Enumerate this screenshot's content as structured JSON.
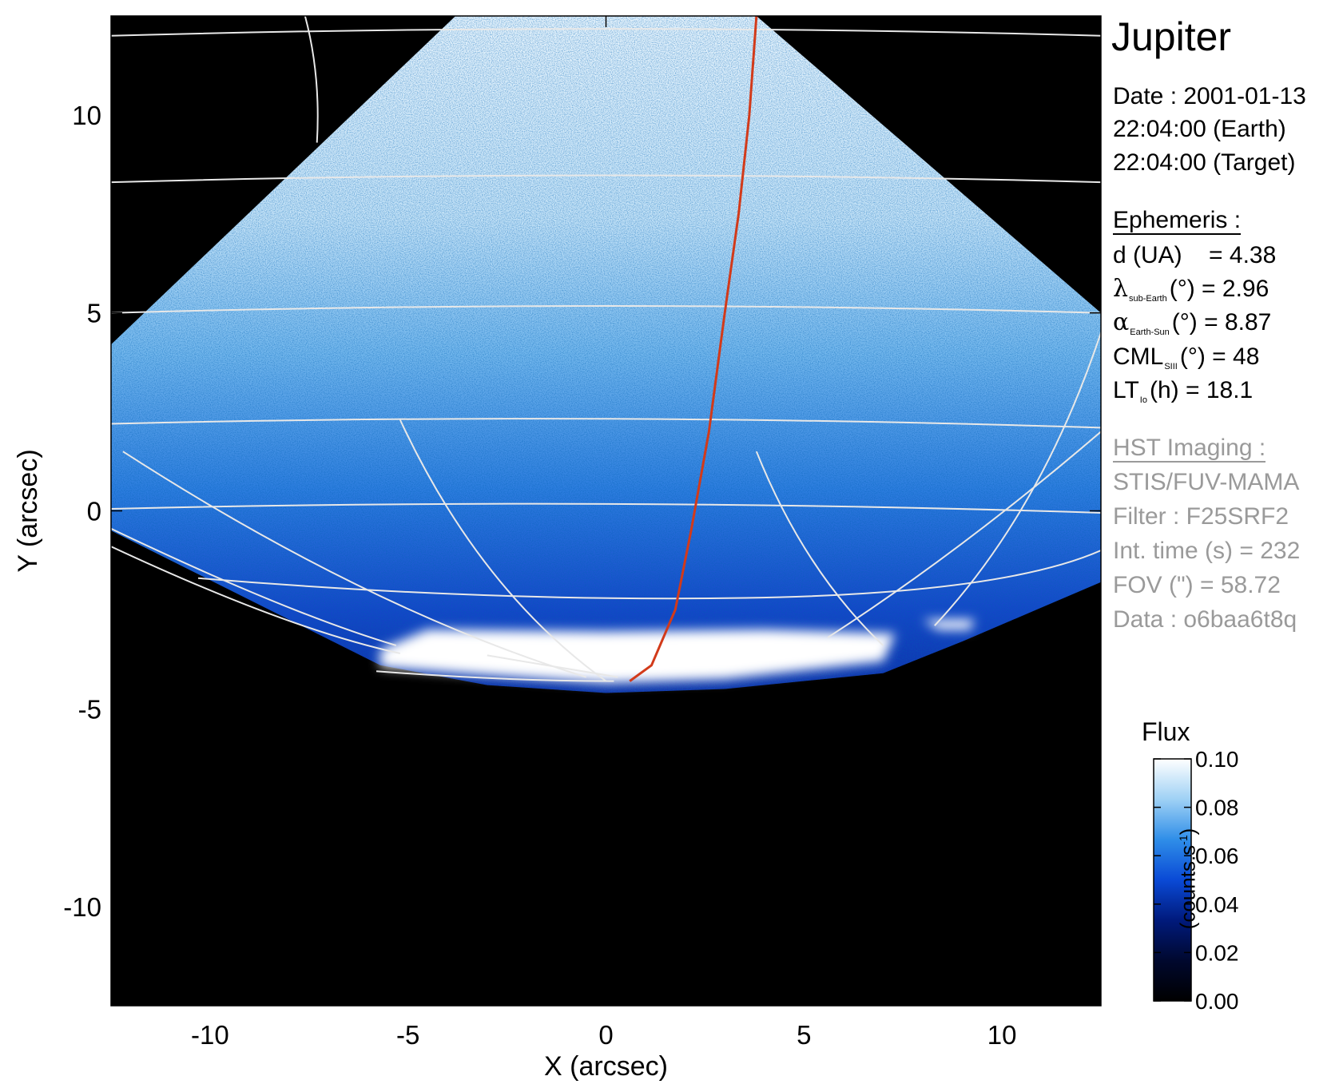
{
  "chart_data": {
    "type": "heatmap",
    "title": "",
    "xlabel": "X (arcsec)",
    "ylabel": "Y (arcsec)",
    "xlim": [
      -12.5,
      12.5
    ],
    "ylim": [
      -12.5,
      12.5
    ],
    "xticks": [
      -10,
      -5,
      0,
      5,
      10
    ],
    "yticks": [
      10,
      5,
      0,
      -5,
      -10
    ],
    "xtick_labels": [
      "-10",
      "-5",
      "0",
      "5",
      "10"
    ],
    "ytick_labels": [
      "10",
      "5",
      "0",
      "-5",
      "-10"
    ],
    "background": "#000000",
    "colormap": {
      "title": "Flux",
      "unit_label": "(counts.s",
      "unit_exponent": "-1",
      "unit_close": ")",
      "range": [
        0.0,
        0.1
      ],
      "ticks": [
        0.1,
        0.08,
        0.06,
        0.04,
        0.02,
        0.0
      ],
      "tick_labels": [
        "0.10",
        "0.08",
        "0.06",
        "0.04",
        "0.02",
        "0.00"
      ],
      "colors": [
        "#000000",
        "#00082e",
        "#001a7c",
        "#0a4ad6",
        "#2f8ee8",
        "#9fd1f5",
        "#ffffff"
      ]
    },
    "image_edge_polygon": [
      [
        -12.5,
        4.2
      ],
      [
        -3.8,
        12.5
      ],
      [
        3.8,
        12.5
      ],
      [
        12.5,
        5.0
      ],
      [
        12.5,
        -1.8
      ],
      [
        9.0,
        -3.3
      ],
      [
        7.0,
        -4.1
      ],
      [
        3.0,
        -4.5
      ],
      [
        0.0,
        -4.6
      ],
      [
        -3.0,
        -4.4
      ],
      [
        -5.7,
        -3.9
      ],
      [
        -12.5,
        -0.5
      ]
    ],
    "footprint_line": {
      "color": "#d23a1a",
      "points": [
        [
          3.8,
          12.5
        ],
        [
          3.62,
          10.0
        ],
        [
          3.35,
          7.5
        ],
        [
          3.0,
          5.0
        ],
        [
          2.6,
          2.0
        ],
        [
          2.15,
          -0.5
        ],
        [
          1.75,
          -2.5
        ],
        [
          1.15,
          -3.9
        ],
        [
          0.6,
          -4.3
        ]
      ]
    },
    "grid_color": "#e8e8e8"
  },
  "panel": {
    "target": "Jupiter",
    "date_line": "Date : 2001-01-13",
    "earth_time": "22:04:00 (Earth)",
    "target_time": "22:04:00 (Target)",
    "ephemeris_header": "Ephemeris :",
    "d_label": "d (UA)",
    "d_value": "= 4.38",
    "lambda_symbol": "λ",
    "lambda_sub": "sub-Earth",
    "lambda_rest": "(°) = 2.96",
    "alpha_symbol": "α",
    "alpha_sub": "Earth-Sun",
    "alpha_rest": "(°) = 8.87",
    "cml_label": "CML",
    "cml_sub": "SIII",
    "cml_rest": "(°) = 48",
    "lt_label": "LT",
    "lt_sub": "Io",
    "lt_rest": "(h) = 18.1",
    "hst_header": "HST Imaging :",
    "instrument": "STIS/FUV-MAMA",
    "filter": "Filter : F25SRF2",
    "int_time": "Int. time (s) = 232",
    "fov": "FOV (\") = 58.72",
    "data_id": "Data : o6baa6t8q",
    "label_color_gray": "#9a9a9a"
  }
}
